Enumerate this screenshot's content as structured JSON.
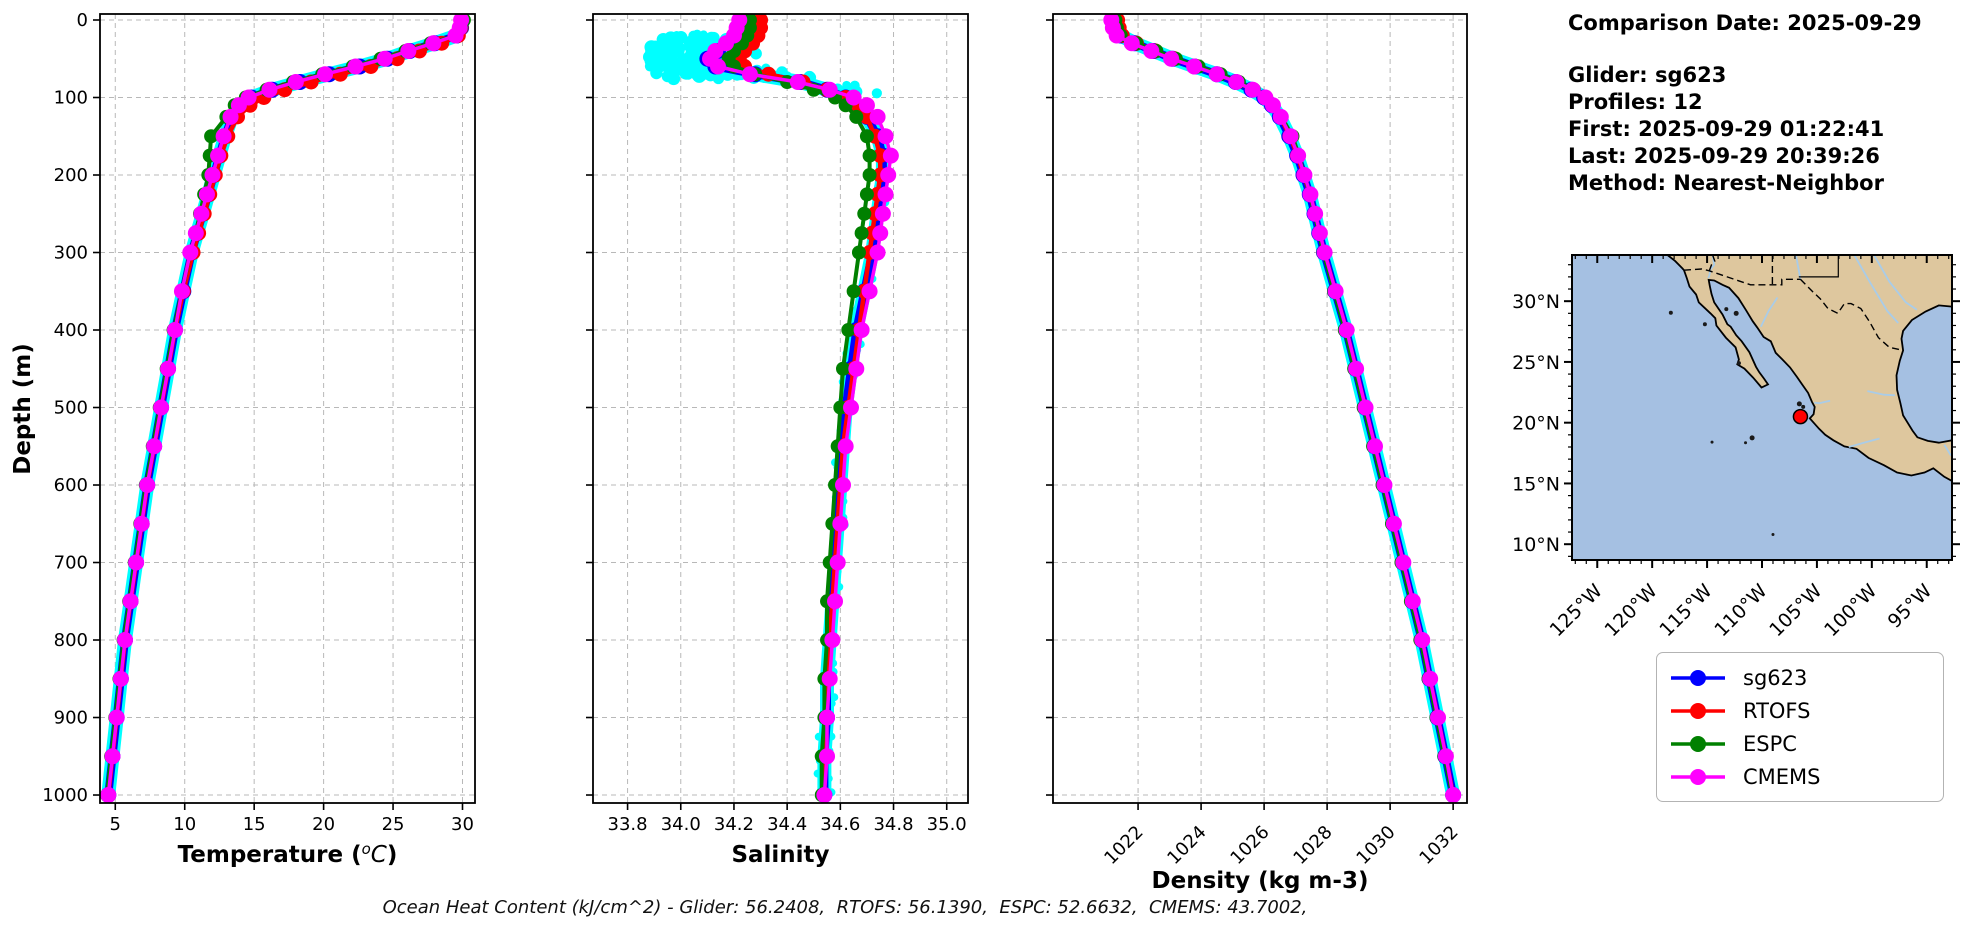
{
  "info_panel": {
    "comparison_date": "Comparison Date: 2025-09-29",
    "glider": "Glider: sg623",
    "profiles": "Profiles: 12",
    "first": "First: 2025-09-29 01:22:41",
    "last": "Last: 2025-09-29 20:39:26",
    "method": "Method: Nearest-Neighbor"
  },
  "legend": {
    "items": [
      {
        "label": "sg623",
        "color": "#0000FF"
      },
      {
        "label": "RTOFS",
        "color": "#FF0000"
      },
      {
        "label": "ESPC",
        "color": "#008000"
      },
      {
        "label": "CMEMS",
        "color": "#FF00FF"
      }
    ]
  },
  "footer": {
    "text": "Ocean Heat Content (kJ/cm^2) - Glider: 56.2408,  RTOFS: 56.1390,  ESPC: 52.6632,  CMEMS: 43.7002,"
  },
  "ocean_heat_content": {
    "units": "kJ/cm^2",
    "glider": 56.2408,
    "rtofs": 56.139,
    "espc": 52.6632,
    "cmems": 43.7002
  },
  "profile_depths": [
    0,
    10,
    20,
    30,
    40,
    50,
    60,
    70,
    80,
    90,
    100,
    110,
    125,
    150,
    175,
    200,
    225,
    250,
    275,
    300,
    350,
    400,
    450,
    500,
    550,
    600,
    650,
    700,
    750,
    800,
    850,
    900,
    950,
    1000
  ],
  "chart_data": [
    {
      "id": "temperature",
      "type": "line",
      "xlabel": "Temperature (°C)",
      "xlabel_math": {
        "pre": "Temperature (",
        "sup": "o",
        "it": "C",
        "post": ")"
      },
      "ylabel": "Depth (m)",
      "xlim": [
        3.9,
        30.9
      ],
      "ylim": [
        0,
        1000
      ],
      "xticks": [
        5,
        10,
        15,
        20,
        25,
        30
      ],
      "xtick_labels": [
        "5",
        "10",
        "15",
        "20",
        "25",
        "30"
      ],
      "yticks": [
        0,
        100,
        200,
        300,
        400,
        500,
        600,
        700,
        800,
        900,
        1000
      ],
      "ytick_labels": [
        "0",
        "100",
        "200",
        "300",
        "400",
        "500",
        "600",
        "700",
        "800",
        "900",
        "1000"
      ],
      "grid": true,
      "raw_scatter_color": "#00FFFF",
      "series": [
        {
          "name": "sg623",
          "color": "#0000FF",
          "values": [
            30.0,
            29.9,
            29.6,
            28.0,
            26.2,
            24.6,
            22.6,
            20.4,
            18.3,
            16.3,
            14.8,
            14.0,
            13.4,
            12.9,
            12.5,
            12.1,
            11.7,
            11.3,
            10.9,
            10.5,
            9.9,
            9.3,
            8.8,
            8.3,
            7.8,
            7.3,
            6.9,
            6.5,
            6.1,
            5.7,
            5.4,
            5.1,
            4.8,
            4.5
          ]
        },
        {
          "name": "RTOFS",
          "color": "#FF0000",
          "values": [
            30.0,
            29.9,
            29.7,
            28.5,
            26.9,
            25.3,
            23.4,
            21.2,
            19.1,
            17.2,
            15.7,
            14.7,
            13.8,
            13.1,
            12.6,
            12.2,
            11.8,
            11.4,
            11.0,
            10.6,
            9.9,
            9.3,
            8.8,
            8.3,
            7.8,
            7.3,
            6.9,
            6.5,
            6.1,
            5.7,
            5.4,
            5.1,
            4.8,
            4.5
          ]
        },
        {
          "name": "ESPC",
          "color": "#008000",
          "values": [
            30.1,
            29.9,
            29.5,
            27.7,
            25.9,
            24.1,
            22.1,
            19.9,
            17.8,
            15.9,
            14.4,
            13.6,
            13.0,
            11.9,
            11.8,
            11.7,
            11.4,
            11.1,
            10.8,
            10.4,
            9.8,
            9.2,
            8.7,
            8.2,
            7.7,
            7.2,
            6.8,
            6.4,
            6.0,
            5.6,
            5.3,
            5.0,
            4.7,
            4.4
          ]
        },
        {
          "name": "CMEMS",
          "color": "#FF00FF",
          "values": [
            29.9,
            29.8,
            29.5,
            27.9,
            26.1,
            24.4,
            22.3,
            20.1,
            18.0,
            16.1,
            14.6,
            13.9,
            13.3,
            12.8,
            12.4,
            12.0,
            11.6,
            11.2,
            10.8,
            10.4,
            9.8,
            9.3,
            8.8,
            8.3,
            7.8,
            7.3,
            6.9,
            6.5,
            6.1,
            5.7,
            5.4,
            5.1,
            4.8,
            4.5
          ]
        }
      ]
    },
    {
      "id": "salinity",
      "type": "line",
      "xlabel": "Salinity",
      "xlim": [
        33.67,
        35.08
      ],
      "ylim": [
        0,
        1000
      ],
      "xticks": [
        33.8,
        34.0,
        34.2,
        34.4,
        34.6,
        34.8,
        35.0
      ],
      "xtick_labels": [
        "33.8",
        "34.0",
        "34.2",
        "34.4",
        "34.6",
        "34.8",
        "35.0"
      ],
      "yticks": [
        0,
        100,
        200,
        300,
        400,
        500,
        600,
        700,
        800,
        900,
        1000
      ],
      "grid": true,
      "raw_scatter_color": "#00FFFF",
      "scatter_cloud": true,
      "series": [
        {
          "name": "sg623",
          "color": "#0000FF",
          "values": [
            34.27,
            34.26,
            34.24,
            34.2,
            34.14,
            34.1,
            34.13,
            34.28,
            34.45,
            34.55,
            34.62,
            34.66,
            34.7,
            34.74,
            34.76,
            34.76,
            34.75,
            34.74,
            34.73,
            34.72,
            34.69,
            34.66,
            34.64,
            34.62,
            34.61,
            34.6,
            34.59,
            34.58,
            34.57,
            34.56,
            34.55,
            34.55,
            34.54,
            34.54
          ]
        },
        {
          "name": "RTOFS",
          "color": "#FF0000",
          "values": [
            34.3,
            34.3,
            34.29,
            34.27,
            34.24,
            34.22,
            34.24,
            34.33,
            34.46,
            34.55,
            34.62,
            34.66,
            34.7,
            34.73,
            34.75,
            34.75,
            34.74,
            34.73,
            34.72,
            34.71,
            34.69,
            34.67,
            34.65,
            34.63,
            34.61,
            34.6,
            34.59,
            34.58,
            34.57,
            34.56,
            34.55,
            34.55,
            34.54,
            34.54
          ]
        },
        {
          "name": "ESPC",
          "color": "#008000",
          "values": [
            34.26,
            34.26,
            34.25,
            34.23,
            34.2,
            34.18,
            34.2,
            34.28,
            34.4,
            34.5,
            34.58,
            34.62,
            34.66,
            34.7,
            34.71,
            34.71,
            34.7,
            34.69,
            34.68,
            34.67,
            34.65,
            34.63,
            34.61,
            34.6,
            34.59,
            34.58,
            34.57,
            34.56,
            34.55,
            34.55,
            34.54,
            34.54,
            34.53,
            34.53
          ]
        },
        {
          "name": "CMEMS",
          "color": "#FF00FF",
          "values": [
            34.22,
            34.21,
            34.2,
            34.17,
            34.13,
            34.11,
            34.14,
            34.26,
            34.44,
            34.56,
            34.65,
            34.7,
            34.74,
            34.77,
            34.79,
            34.78,
            34.77,
            34.76,
            34.75,
            34.74,
            34.71,
            34.68,
            34.66,
            34.64,
            34.62,
            34.61,
            34.6,
            34.59,
            34.58,
            34.57,
            34.56,
            34.55,
            34.55,
            34.54
          ]
        }
      ]
    },
    {
      "id": "density",
      "type": "line",
      "xlabel": "Density (kg m-3)",
      "xlim": [
        1019.3,
        1032.44
      ],
      "ylim": [
        0,
        1000
      ],
      "xticks": [
        1022,
        1024,
        1026,
        1028,
        1030,
        1032
      ],
      "xtick_labels": [
        "1022",
        "1024",
        "1026",
        "1028",
        "1030",
        "1032"
      ],
      "yticks": [
        0,
        100,
        200,
        300,
        400,
        500,
        600,
        700,
        800,
        900,
        1000
      ],
      "grid": true,
      "rotate_x_labels": true,
      "raw_scatter_color": "#00FFFF",
      "series": [
        {
          "name": "sg623",
          "color": "#0000FF",
          "values": [
            1021.3,
            1021.35,
            1021.45,
            1021.9,
            1022.5,
            1023.1,
            1023.8,
            1024.5,
            1025.1,
            1025.6,
            1026.0,
            1026.25,
            1026.5,
            1026.8,
            1027.05,
            1027.25,
            1027.45,
            1027.6,
            1027.75,
            1027.9,
            1028.25,
            1028.6,
            1028.9,
            1029.2,
            1029.5,
            1029.8,
            1030.1,
            1030.4,
            1030.7,
            1031.0,
            1031.25,
            1031.5,
            1031.75,
            1032.0
          ]
        },
        {
          "name": "RTOFS",
          "color": "#FF0000",
          "values": [
            1021.35,
            1021.4,
            1021.5,
            1021.95,
            1022.55,
            1023.15,
            1023.85,
            1024.55,
            1025.15,
            1025.65,
            1026.05,
            1026.28,
            1026.52,
            1026.82,
            1027.06,
            1027.26,
            1027.46,
            1027.61,
            1027.76,
            1027.91,
            1028.26,
            1028.61,
            1028.91,
            1029.21,
            1029.51,
            1029.81,
            1030.11,
            1030.41,
            1030.71,
            1031.01,
            1031.26,
            1031.51,
            1031.76,
            1032.0
          ]
        },
        {
          "name": "ESPC",
          "color": "#008000",
          "values": [
            1021.28,
            1021.33,
            1021.45,
            1021.95,
            1022.58,
            1023.2,
            1023.92,
            1024.62,
            1025.2,
            1025.68,
            1026.06,
            1026.3,
            1026.55,
            1026.9,
            1027.1,
            1027.28,
            1027.46,
            1027.6,
            1027.74,
            1027.88,
            1028.22,
            1028.56,
            1028.86,
            1029.16,
            1029.46,
            1029.76,
            1030.06,
            1030.36,
            1030.66,
            1030.96,
            1031.22,
            1031.47,
            1031.72,
            1031.97
          ]
        },
        {
          "name": "CMEMS",
          "color": "#FF00FF",
          "values": [
            1021.15,
            1021.2,
            1021.32,
            1021.8,
            1022.42,
            1023.05,
            1023.78,
            1024.5,
            1025.12,
            1025.64,
            1026.04,
            1026.28,
            1026.53,
            1026.84,
            1027.08,
            1027.28,
            1027.47,
            1027.62,
            1027.77,
            1027.92,
            1028.27,
            1028.62,
            1028.92,
            1029.22,
            1029.52,
            1029.82,
            1030.12,
            1030.42,
            1030.72,
            1031.02,
            1031.27,
            1031.52,
            1031.77,
            1032.0
          ]
        }
      ]
    }
  ],
  "map": {
    "lat_tick_labels": [
      "30°N",
      "25°N",
      "20°N",
      "15°N",
      "10°N"
    ],
    "lat_ticks": [
      30,
      25,
      20,
      15,
      10
    ],
    "lon_tick_labels": [
      "125°W",
      "120°W",
      "115°W",
      "110°W",
      "105°W",
      "100°W",
      "95°W"
    ],
    "lon_ticks": [
      -125,
      -120,
      -115,
      -110,
      -105,
      -100,
      -95
    ],
    "extent": {
      "lon_min": -127.3,
      "lon_max": -92.7,
      "lat_min": 8.7,
      "lat_max": 33.8
    },
    "marker": {
      "lat": 20.5,
      "lon": -106.5,
      "color": "#FF0000"
    },
    "colors": {
      "ocean": "#A5C0E2",
      "land": "#DEC79E",
      "coast": "#000000",
      "river": "#A9CCE8"
    }
  }
}
